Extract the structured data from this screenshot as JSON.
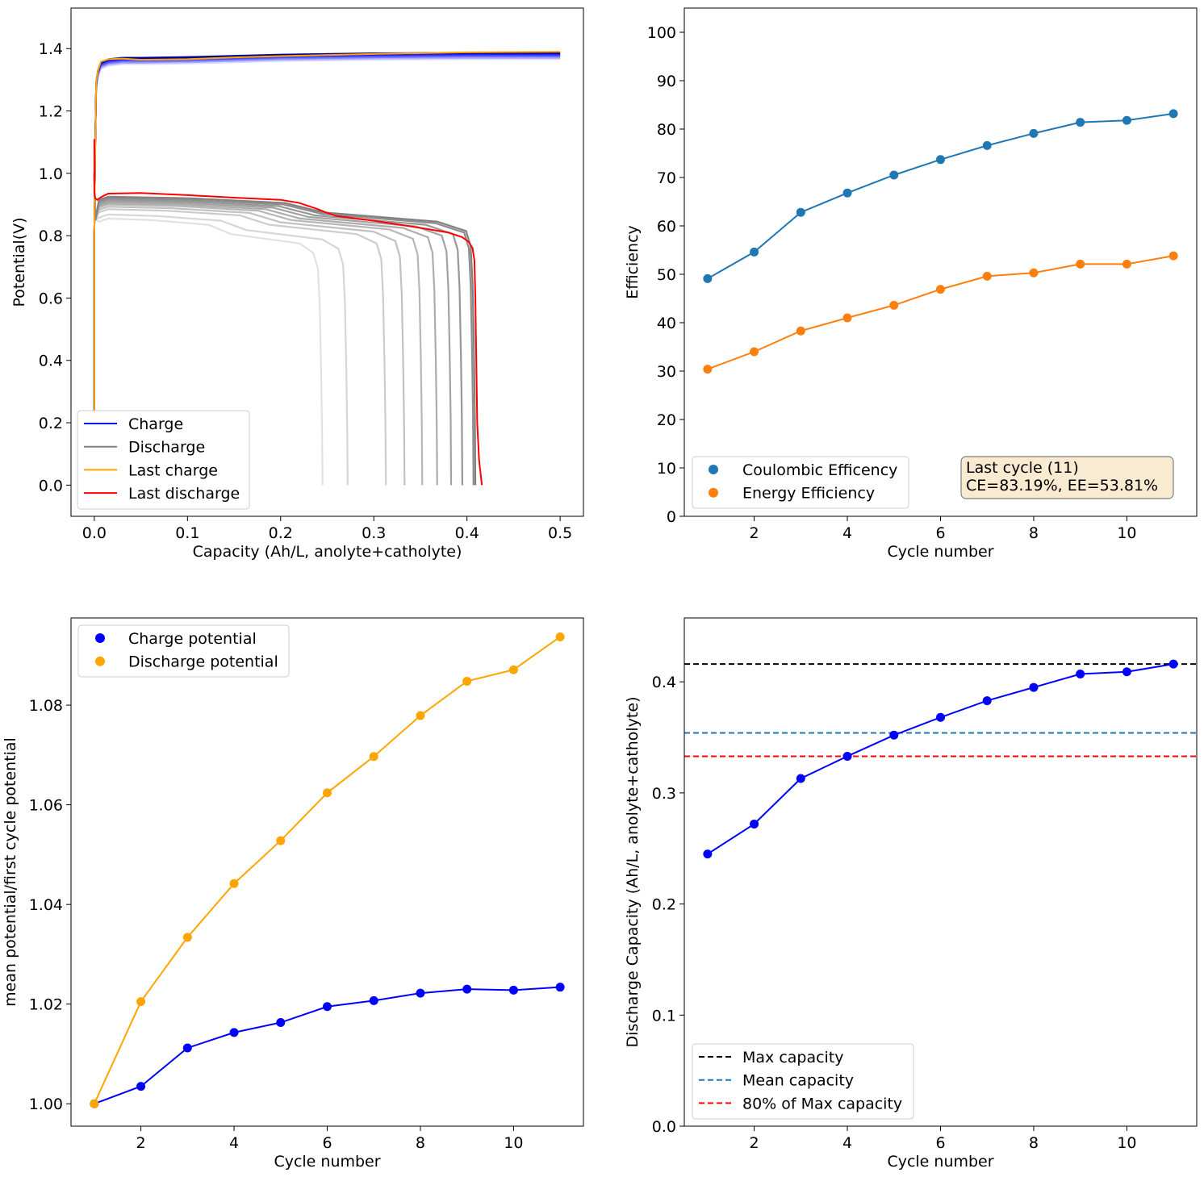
{
  "chart_data": [
    {
      "type": "line",
      "id": "voltage",
      "xlabel": "Capacity (Ah/L, anolyte+catholyte)",
      "ylabel": "Potential(V)",
      "xlim": [
        -0.025,
        0.525
      ],
      "ylim": [
        -0.1,
        1.53
      ],
      "xticks": [
        0.0,
        0.1,
        0.2,
        0.3,
        0.4,
        0.5
      ],
      "xtick_labels": [
        "0.0",
        "0.1",
        "0.2",
        "0.3",
        "0.4",
        "0.5"
      ],
      "yticks": [
        0.0,
        0.2,
        0.4,
        0.6,
        0.8,
        1.0,
        1.2,
        1.4
      ],
      "ytick_labels": [
        "0.0",
        "0.2",
        "0.4",
        "0.6",
        "0.8",
        "1.0",
        "1.2",
        "1.4"
      ],
      "legend": {
        "position": "lower-left",
        "entries": [
          {
            "label": "Charge",
            "color": "#0000ff",
            "style": "solid"
          },
          {
            "label": "Discharge",
            "color": "#808080",
            "style": "solid"
          },
          {
            "label": "Last charge",
            "color": "#ffa500",
            "style": "solid"
          },
          {
            "label": "Last discharge",
            "color": "#ff0000",
            "style": "solid"
          }
        ]
      },
      "discharge_capacities": [
        0.245,
        0.272,
        0.313,
        0.333,
        0.352,
        0.368,
        0.383,
        0.395,
        0.407,
        0.409
      ],
      "discharge_plateau_levels": [
        0.855,
        0.868,
        0.885,
        0.893,
        0.9,
        0.905,
        0.91,
        0.915,
        0.92,
        0.925
      ],
      "last_discharge": {
        "x": [
          0.0,
          0.0,
          0.001,
          0.003,
          0.008,
          0.015,
          0.05,
          0.1,
          0.15,
          0.2,
          0.22,
          0.24,
          0.25,
          0.26,
          0.3,
          0.35,
          0.38,
          0.395,
          0.402,
          0.406,
          0.408,
          0.409,
          0.41,
          0.411,
          0.413,
          0.416
        ],
        "y": [
          1.11,
          0.94,
          0.92,
          0.915,
          0.925,
          0.935,
          0.937,
          0.93,
          0.922,
          0.915,
          0.905,
          0.885,
          0.873,
          0.863,
          0.848,
          0.825,
          0.81,
          0.795,
          0.78,
          0.76,
          0.72,
          0.6,
          0.4,
          0.2,
          0.08,
          0.0
        ]
      },
      "charge_cycles": 11,
      "charge_end_capacity": 0.5,
      "last_charge": {
        "x": [
          0.0,
          0.0,
          0.001,
          0.002,
          0.004,
          0.007,
          0.015,
          0.03,
          0.05,
          0.1,
          0.15,
          0.2,
          0.3,
          0.4,
          0.5
        ],
        "y": [
          0.23,
          0.8,
          1.1,
          1.29,
          1.33,
          1.358,
          1.366,
          1.368,
          1.364,
          1.366,
          1.372,
          1.376,
          1.383,
          1.388,
          1.39
        ]
      }
    },
    {
      "type": "line",
      "id": "efficiency",
      "xlabel": "Cycle number",
      "ylabel": "Efficiency",
      "xlim": [
        0.5,
        11.5
      ],
      "ylim": [
        0,
        105
      ],
      "xticks": [
        2,
        4,
        6,
        8,
        10
      ],
      "xtick_labels": [
        "2",
        "4",
        "6",
        "8",
        "10"
      ],
      "yticks": [
        0,
        10,
        20,
        30,
        40,
        50,
        60,
        70,
        80,
        90,
        100
      ],
      "ytick_labels": [
        "0",
        "10",
        "20",
        "30",
        "40",
        "50",
        "60",
        "70",
        "80",
        "90",
        "100"
      ],
      "x": [
        1,
        2,
        3,
        4,
        5,
        6,
        7,
        8,
        9,
        10,
        11
      ],
      "series": [
        {
          "name": "Coulombic Efficency",
          "color": "#1f77b4",
          "values": [
            49.1,
            54.6,
            62.8,
            66.8,
            70.5,
            73.7,
            76.6,
            79.1,
            81.4,
            81.8,
            83.19
          ]
        },
        {
          "name": "Energy Efficiency",
          "color": "#ff7f0e",
          "values": [
            30.4,
            34.0,
            38.3,
            41.0,
            43.6,
            46.9,
            49.6,
            50.3,
            52.1,
            52.1,
            53.81
          ]
        }
      ],
      "legend_position": "lower-left",
      "annotation": [
        "Last cycle (11)",
        " CE=83.19%, EE=53.81%"
      ],
      "annotation_bg": "#f5deb3"
    },
    {
      "type": "line",
      "id": "potential-ratio",
      "xlabel": "Cycle number",
      "ylabel": "mean potential/first cycle potential",
      "xlim": [
        0.5,
        11.5
      ],
      "ylim": [
        0.9955,
        1.0975
      ],
      "xticks": [
        2,
        4,
        6,
        8,
        10
      ],
      "xtick_labels": [
        "2",
        "4",
        "6",
        "8",
        "10"
      ],
      "yticks": [
        1.0,
        1.02,
        1.04,
        1.06,
        1.08
      ],
      "ytick_labels": [
        "1.00",
        "1.02",
        "1.04",
        "1.06",
        "1.08"
      ],
      "x": [
        1,
        2,
        3,
        4,
        5,
        6,
        7,
        8,
        9,
        10,
        11
      ],
      "series": [
        {
          "name": "Charge potential",
          "color": "#0000ff",
          "values": [
            1.0,
            1.0035,
            1.0112,
            1.0143,
            1.0163,
            1.0195,
            1.0207,
            1.0222,
            1.023,
            1.0228,
            1.0234
          ]
        },
        {
          "name": "Discharge potential",
          "color": "#ffa500",
          "values": [
            1.0,
            1.0205,
            1.0334,
            1.0442,
            1.0528,
            1.0624,
            1.0697,
            1.0779,
            1.0848,
            1.0871,
            1.0937
          ]
        }
      ],
      "legend_position": "upper-left"
    },
    {
      "type": "line",
      "id": "capacity",
      "xlabel": "Cycle number",
      "ylabel": "Discharge Capacity (Ah/L, anolyte+catholyte)",
      "xlim": [
        0.5,
        11.5
      ],
      "ylim": [
        0.0,
        0.4575
      ],
      "xticks": [
        2,
        4,
        6,
        8,
        10
      ],
      "xtick_labels": [
        "2",
        "4",
        "6",
        "8",
        "10"
      ],
      "yticks": [
        0.0,
        0.1,
        0.2,
        0.3,
        0.4
      ],
      "ytick_labels": [
        "0.0",
        "0.1",
        "0.2",
        "0.3",
        "0.4"
      ],
      "x": [
        1,
        2,
        3,
        4,
        5,
        6,
        7,
        8,
        9,
        10,
        11
      ],
      "series": [
        {
          "name": "Discharge capacity",
          "color": "#0000ff",
          "values": [
            0.245,
            0.272,
            0.313,
            0.333,
            0.352,
            0.368,
            0.383,
            0.395,
            0.407,
            0.409,
            0.416
          ]
        }
      ],
      "hlines": [
        {
          "name": "Max capacity",
          "value": 0.416,
          "color": "#000000"
        },
        {
          "name": "Mean capacity",
          "value": 0.354,
          "color": "#1f77b4"
        },
        {
          "name": "80% of Max capacity",
          "value": 0.333,
          "color": "#ff0000"
        }
      ],
      "legend_position": "lower-left"
    }
  ]
}
